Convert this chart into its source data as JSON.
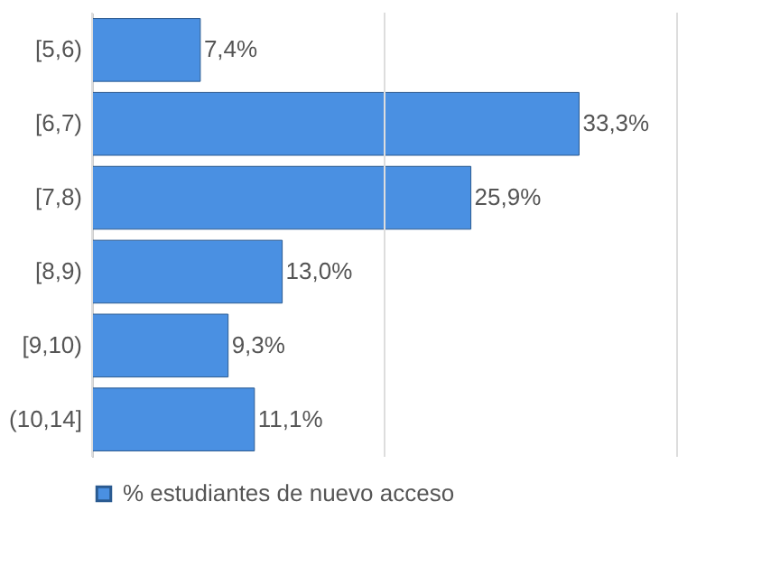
{
  "chart_data": {
    "type": "bar",
    "orientation": "horizontal",
    "categories": [
      "[5,6)",
      "[6,7)",
      "[7,8)",
      "[8,9)",
      "[9,10)",
      "(10,14]"
    ],
    "series": [
      {
        "name": "% estudiantes de nuevo acceso",
        "color": "#4a90e2",
        "values": [
          7.4,
          33.3,
          25.9,
          13.0,
          9.3,
          11.1
        ],
        "value_labels": [
          "7,4%",
          "33,3%",
          "25,9%",
          "13,0%",
          "9,3%",
          "11,1%"
        ]
      }
    ],
    "xlim": [
      0,
      40
    ],
    "xticks": [
      {
        "value": 0,
        "label": null
      },
      {
        "value": 20,
        "label": null
      },
      {
        "value": 40,
        "label": null
      }
    ],
    "tick_labels": "y",
    "grid": "x",
    "legend": "bottom"
  }
}
